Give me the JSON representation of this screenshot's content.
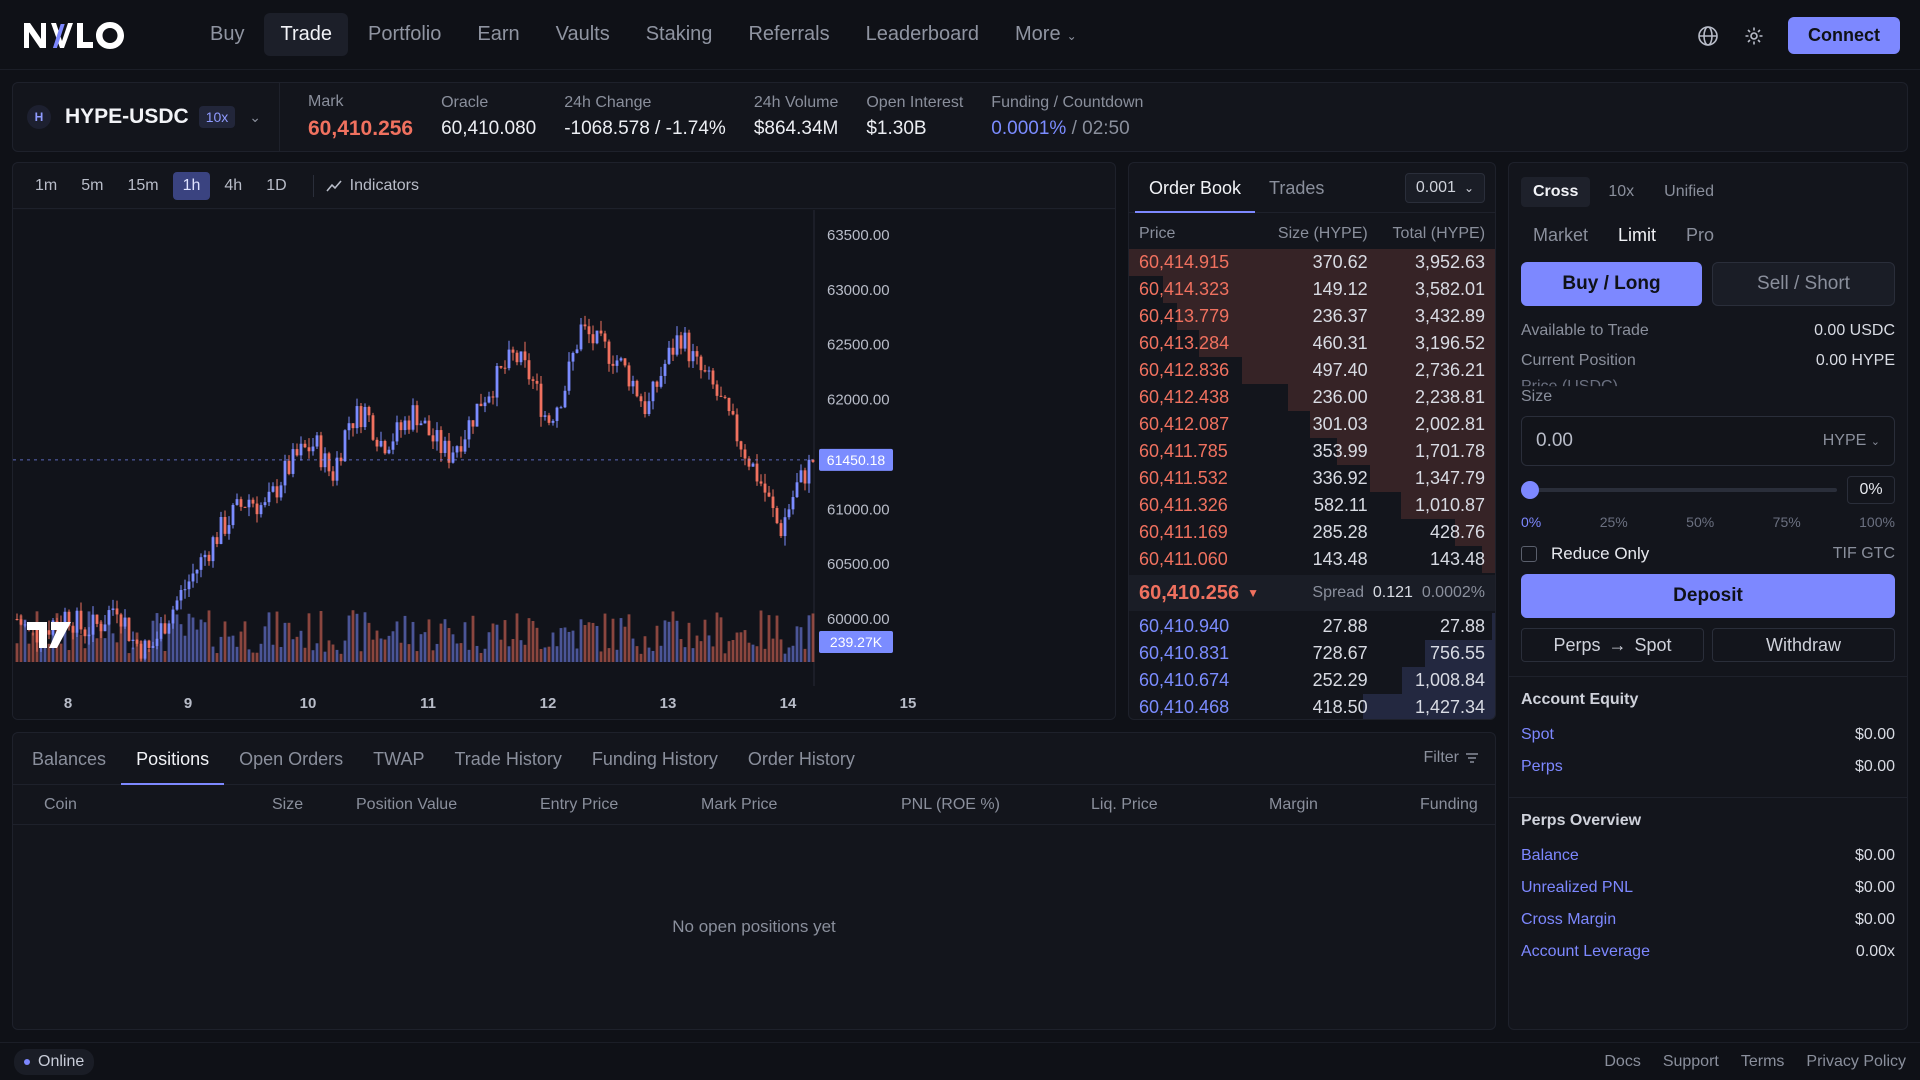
{
  "brand": "NVLO",
  "nav": {
    "items": [
      "Buy",
      "Trade",
      "Portfolio",
      "Earn",
      "Vaults",
      "Staking",
      "Referrals",
      "Leaderboard"
    ],
    "active": "Trade",
    "more": "More",
    "connect": "Connect"
  },
  "market": {
    "icon_letter": "H",
    "pair": "HYPE-USDC",
    "leverage": "10x",
    "stats": [
      {
        "label": "Mark",
        "value": "60,410.256"
      },
      {
        "label": "Oracle",
        "value": "60,410.080"
      },
      {
        "label": "24h Change",
        "value": "-1068.578 / -1.74%"
      },
      {
        "label": "24h Volume",
        "value": "$864.34M"
      },
      {
        "label": "Open Interest",
        "value": "$1.30B"
      },
      {
        "label": "Funding / Countdown",
        "value": "0.0001%",
        "value2": " / 02:50"
      }
    ]
  },
  "chart": {
    "timeframes": [
      "1m",
      "5m",
      "15m",
      "1h",
      "4h",
      "1D"
    ],
    "active_tf": "1h",
    "indicators": "Indicators",
    "last_price_label": "61450.18",
    "volume_label": "239.27K",
    "colors": {
      "up": "#7b8cff",
      "down": "#f0715f"
    }
  },
  "chart_data": {
    "type": "candlestick",
    "y_ticks": [
      "63500.00",
      "63000.00",
      "62500.00",
      "62000.00",
      "61000.00",
      "60500.00",
      "60000.00"
    ],
    "x_ticks": [
      "8",
      "9",
      "10",
      "11",
      "12",
      "13",
      "14",
      "15"
    ],
    "ylim": [
      59900,
      63600
    ],
    "close_path": [
      60000,
      59850,
      59950,
      60050,
      59900,
      59950,
      60150,
      59800,
      59700,
      60000,
      60250,
      60500,
      60750,
      60950,
      61100,
      61000,
      61300,
      61500,
      61600,
      61300,
      61800,
      61900,
      61600,
      61700,
      61900,
      61650,
      61500,
      61700,
      62000,
      62200,
      62400,
      62200,
      61800,
      62100,
      62650,
      62500,
      62400,
      62200,
      61900,
      62300,
      62600,
      62300,
      62100,
      61800,
      61500,
      61200,
      60800,
      61200,
      61450
    ]
  },
  "orderbook": {
    "tabs": [
      "Order Book",
      "Trades"
    ],
    "tick": "0.001",
    "headers": [
      "Price",
      "Size (HYPE)",
      "Total (HYPE)"
    ],
    "asks": [
      [
        "60,414.915",
        "370.62",
        "3,952.63"
      ],
      [
        "60,414.323",
        "149.12",
        "3,582.01"
      ],
      [
        "60,413.779",
        "236.37",
        "3,432.89"
      ],
      [
        "60,413.284",
        "460.31",
        "3,196.52"
      ],
      [
        "60,412.836",
        "497.40",
        "2,736.21"
      ],
      [
        "60,412.438",
        "236.00",
        "2,238.81"
      ],
      [
        "60,412.087",
        "301.03",
        "2,002.81"
      ],
      [
        "60,411.785",
        "353.99",
        "1,701.78"
      ],
      [
        "60,411.532",
        "336.92",
        "1,347.79"
      ],
      [
        "60,411.326",
        "582.11",
        "1,010.87"
      ],
      [
        "60,411.169",
        "285.28",
        "428.76"
      ],
      [
        "60,411.060",
        "143.48",
        "143.48"
      ]
    ],
    "mid": "60,410.256",
    "spread_label": "Spread",
    "spread": "0.121",
    "spread_pct": "0.0002%",
    "bids": [
      [
        "60,410.940",
        "27.88",
        "27.88"
      ],
      [
        "60,410.831",
        "728.67",
        "756.55"
      ],
      [
        "60,410.674",
        "252.29",
        "1,008.84"
      ],
      [
        "60,410.468",
        "418.50",
        "1,427.34"
      ]
    ]
  },
  "positions": {
    "tabs": [
      "Balances",
      "Positions",
      "Open Orders",
      "TWAP",
      "Trade History",
      "Funding History",
      "Order History"
    ],
    "active": "Positions",
    "filter": "Filter",
    "columns": [
      "Coin",
      "Size",
      "Position Value",
      "Entry Price",
      "Mark Price",
      "PNL (ROE %)",
      "Liq. Price",
      "Margin",
      "Funding"
    ],
    "empty": "No open positions yet"
  },
  "trade": {
    "modes": [
      "Cross",
      "10x",
      "Unified"
    ],
    "order_types": [
      "Market",
      "Limit",
      "Pro"
    ],
    "active_type": "Limit",
    "buy": "Buy / Long",
    "sell": "Sell / Short",
    "available_label": "Available to Trade",
    "available_value": "0.00 USDC",
    "position_label": "Current Position",
    "position_value": "0.00 HYPE",
    "price_label": "Price (USDC)",
    "size_label": "Size",
    "size_value": "0.00",
    "size_unit": "HYPE",
    "slider_pct": "0%",
    "slider_fraction": 0,
    "ticks": [
      "0%",
      "25%",
      "50%",
      "75%",
      "100%"
    ],
    "reduce_only": "Reduce Only",
    "tif": "TIF GTC",
    "deposit": "Deposit",
    "perps_spot_a": "Perps",
    "perps_spot_b": "Spot",
    "withdraw": "Withdraw",
    "equity_title": "Account Equity",
    "equity": [
      [
        "Spot",
        "$0.00"
      ],
      [
        "Perps",
        "$0.00"
      ]
    ],
    "overview_title": "Perps Overview",
    "overview": [
      [
        "Balance",
        "$0.00"
      ],
      [
        "Unrealized PNL",
        "$0.00"
      ],
      [
        "Cross Margin",
        "$0.00"
      ],
      [
        "Account Leverage",
        "0.00x"
      ]
    ]
  },
  "footer": {
    "status": "Online",
    "links": [
      "Docs",
      "Support",
      "Terms",
      "Privacy Policy"
    ]
  }
}
